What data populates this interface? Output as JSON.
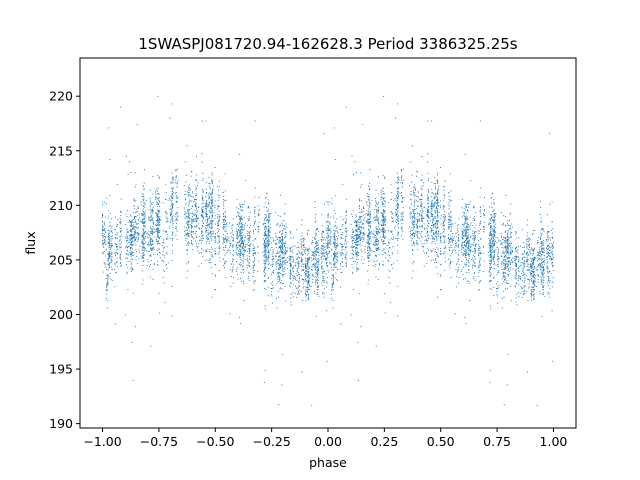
{
  "chart_data": {
    "type": "scatter",
    "title": "1SWASPJ081720.94-162628.3 Period 3386325.25s",
    "xlabel": "phase",
    "ylabel": "flux",
    "xlim": [
      -1.1,
      1.1
    ],
    "ylim": [
      189.6,
      223.5
    ],
    "xticks": [
      -1.0,
      -0.75,
      -0.5,
      -0.25,
      0.0,
      0.25,
      0.5,
      0.75,
      1.0
    ],
    "xtick_labels": [
      "−1.00",
      "−0.75",
      "−0.50",
      "−0.25",
      "0.00",
      "0.25",
      "0.50",
      "0.75",
      "1.00"
    ],
    "yticks": [
      190,
      195,
      200,
      205,
      210,
      215,
      220
    ],
    "ytick_labels": [
      "190",
      "195",
      "200",
      "205",
      "210",
      "215",
      "220"
    ],
    "grid": false,
    "point_color": "#1f77b4",
    "phase_profile": {
      "description_of_series": "phase-folded light curve; points are clustered vertical streaks",
      "phase": [
        0.0,
        0.05,
        0.1,
        0.15,
        0.2,
        0.25,
        0.3,
        0.35,
        0.4,
        0.45,
        0.5,
        0.55,
        0.6,
        0.65,
        0.7,
        0.75,
        0.8,
        0.85,
        0.9,
        0.95,
        1.0
      ],
      "mean_flux": [
        205.5,
        206.0,
        206.5,
        207.5,
        208.0,
        208.0,
        209.5,
        210.0,
        209.5,
        209.5,
        208.0,
        207.0,
        206.5,
        207.0,
        207.0,
        206.0,
        205.0,
        204.0,
        204.0,
        205.0,
        205.5
      ],
      "scatter": [
        1.6,
        1.6,
        1.6,
        1.6,
        1.7,
        1.8,
        2.0,
        2.2,
        2.2,
        2.0,
        1.9,
        1.8,
        1.8,
        1.8,
        1.8,
        1.8,
        1.7,
        1.6,
        1.6,
        1.6,
        1.6
      ]
    }
  }
}
